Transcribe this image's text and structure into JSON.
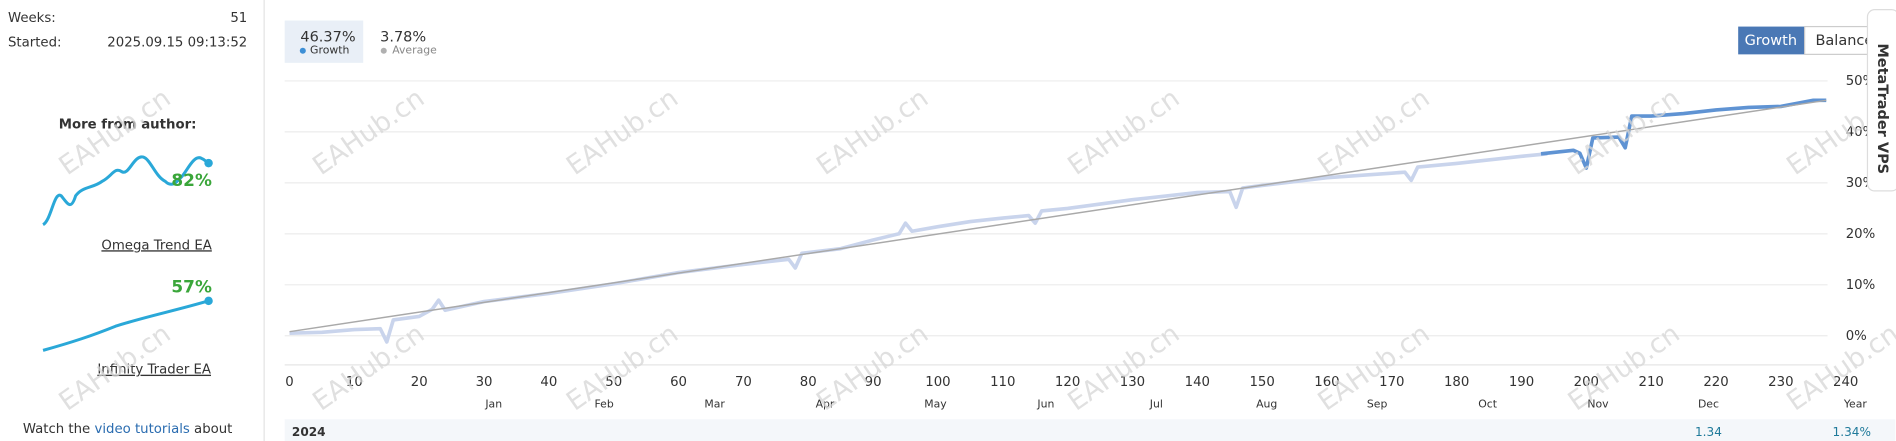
{
  "sidebar": {
    "stats": [
      {
        "label": "Weeks:",
        "value": "51"
      },
      {
        "label": "Started:",
        "value": "2025.09.15 09:13:52"
      }
    ],
    "more_title": "More from author:",
    "products": [
      {
        "name": "Omega Trend EA",
        "growth": "82%"
      },
      {
        "name": "Infinity Trader EA",
        "growth": "57%"
      }
    ],
    "footer": [
      "Watch the",
      "video tutorials",
      "about"
    ]
  },
  "watermark": "EAHub.cn",
  "tabs": [
    {
      "value": "46.37%",
      "label": "Growth"
    },
    {
      "value": "3.78%",
      "label": "Average"
    }
  ],
  "buttons": [
    "Growth",
    "Balance"
  ],
  "side_tab": "MetaTrader VPS",
  "chart_data": {
    "type": "line",
    "xlim": [
      0,
      240
    ],
    "xticks": [
      0,
      10,
      20,
      30,
      40,
      50,
      60,
      70,
      80,
      90,
      100,
      110,
      120,
      130,
      140,
      150,
      160,
      170,
      180,
      190,
      200,
      210,
      220,
      230,
      240
    ],
    "ylim": [
      -5,
      50
    ],
    "yticks": [
      {
        "value": 0,
        "label": "0%"
      },
      {
        "value": 10,
        "label": "10%"
      },
      {
        "value": 20,
        "label": "20%"
      },
      {
        "value": 30,
        "label": "30%"
      },
      {
        "value": 40,
        "label": "40%"
      },
      {
        "value": 50,
        "label": "50%"
      }
    ],
    "grid": true,
    "series": [
      {
        "color": "#c9d4ec",
        "x": [
          0,
          5,
          10,
          14,
          15,
          16,
          20,
          22,
          23,
          24,
          30,
          40,
          50,
          60,
          70,
          77,
          78,
          79,
          85,
          90,
          94,
          95,
          96,
          100,
          105,
          110,
          114,
          115,
          116,
          120,
          130,
          140,
          145,
          146,
          147,
          150,
          160,
          170,
          172,
          173,
          174,
          180,
          190,
          194
        ],
        "values": [
          0.5,
          0.7,
          1.2,
          1.4,
          -1.2,
          3.1,
          3.8,
          5.2,
          7,
          5,
          6.7,
          8.3,
          10.2,
          12.4,
          14,
          15,
          13.3,
          16.2,
          17.1,
          18.8,
          20,
          22.1,
          20.5,
          21.4,
          22.4,
          23.1,
          23.6,
          22.1,
          24.5,
          25,
          26.7,
          28.1,
          28.3,
          25.2,
          29,
          29.5,
          31,
          31.9,
          32.1,
          30.5,
          33.1,
          33.8,
          35.2,
          35.7
        ]
      },
      {
        "color": "#5f93d3",
        "x": [
          193,
          198,
          199,
          200,
          201,
          205,
          206,
          207,
          210,
          215,
          220,
          225,
          230,
          235,
          237
        ],
        "values": [
          35.7,
          36.4,
          35.8,
          32.9,
          38.8,
          39,
          36.9,
          43.1,
          43.1,
          43.6,
          44.3,
          44.8,
          45,
          46.2,
          46.2
        ]
      },
      {
        "color": "#a9a9a9",
        "x": [
          0,
          237
        ],
        "values": [
          0.8,
          46.2
        ]
      }
    ]
  },
  "table": {
    "columns": [
      "Jan",
      "Feb",
      "Mar",
      "Apr",
      "May",
      "Jun",
      "Jul",
      "Aug",
      "Sep",
      "Oct",
      "Nov",
      "Dec",
      "Year"
    ],
    "rows": [
      {
        "year": "2024",
        "dec": "1.34",
        "total": "1.34%"
      }
    ]
  }
}
